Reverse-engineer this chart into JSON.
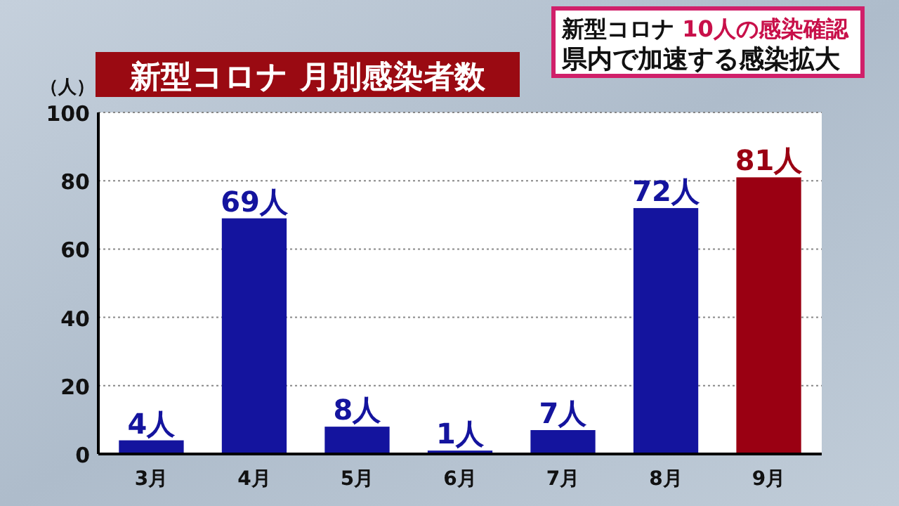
{
  "chart_data": {
    "type": "bar",
    "title": "新型コロナ 月別感染者数",
    "ylabel": "（人）",
    "annotations": [
      "新型コロナ 10人の感染確認",
      "県内で加速する感染拡大"
    ],
    "categories": [
      "3月",
      "4月",
      "5月",
      "6月",
      "7月",
      "8月",
      "9月"
    ],
    "values": [
      4,
      69,
      8,
      1,
      7,
      72,
      81
    ],
    "colors": [
      "#14149e",
      "#14149e",
      "#14149e",
      "#14149e",
      "#14149e",
      "#14149e",
      "#9a0012"
    ],
    "value_labels": [
      "4人",
      "69人",
      "8人",
      "1人",
      "7人",
      "72人",
      "81人"
    ],
    "ylim": [
      0,
      100
    ],
    "yticks": [
      0,
      20,
      40,
      60,
      80,
      100
    ],
    "grid": "y"
  }
}
